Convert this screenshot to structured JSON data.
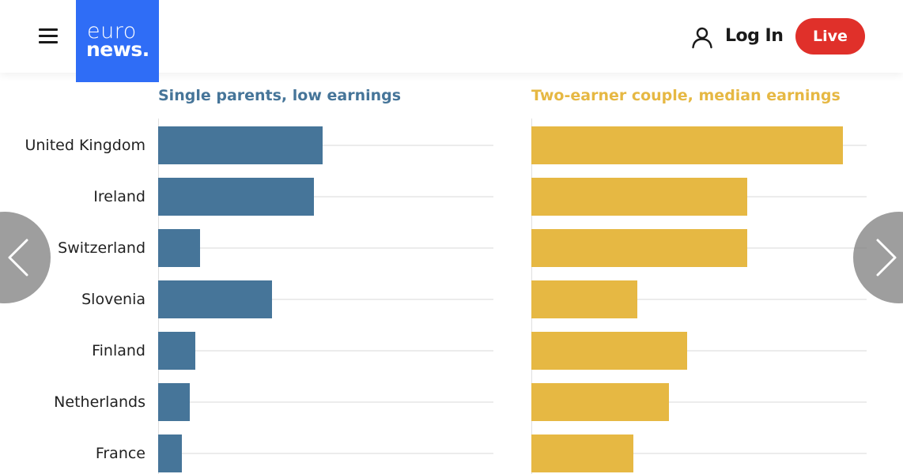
{
  "header": {
    "logo_top": "euro",
    "logo_bottom": "news.",
    "login_label": "Log In",
    "live_label": "Live"
  },
  "icons": {
    "menu": "hamburger-menu-icon",
    "user": "user-icon",
    "prev": "chevron-left-icon",
    "next": "chevron-right-icon"
  },
  "colors": {
    "brand_blue": "#2f6df6",
    "live_red": "#e0302a",
    "series_low": "#467599",
    "series_median": "#e6b843"
  },
  "chart_data": {
    "type": "bar",
    "orientation": "horizontal",
    "categories": [
      "United Kingdom",
      "Ireland",
      "Switzerland",
      "Slovenia",
      "Finland",
      "Netherlands",
      "France"
    ],
    "series": [
      {
        "name": "Single parents, low earnings",
        "values": [
          49,
          46.5,
          12.5,
          34,
          11,
          9.5,
          7
        ]
      },
      {
        "name": "Two-earner couple, median earnings",
        "values": [
          93,
          64.5,
          64.5,
          31.5,
          46.5,
          41,
          30.5
        ]
      }
    ],
    "xlim": [
      0,
      100
    ],
    "grid": true,
    "legend": "panel-titles"
  }
}
